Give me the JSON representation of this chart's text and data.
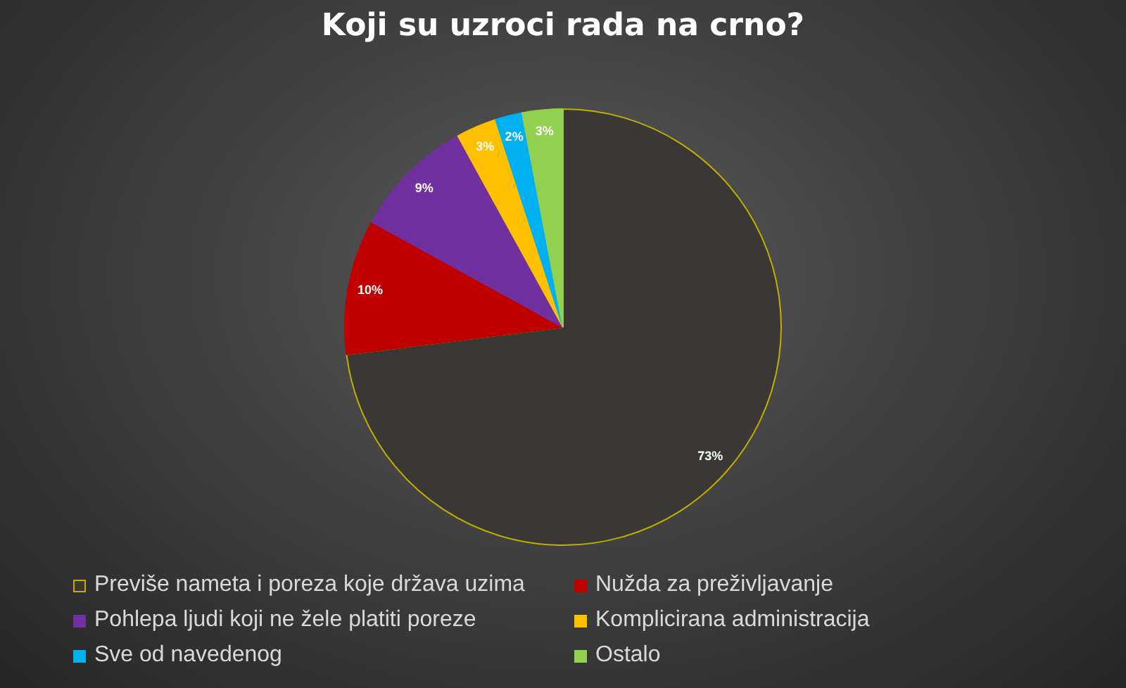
{
  "chart_data": {
    "type": "pie",
    "title": "Koji su uzroci rada na crno?",
    "categories": [
      "Previše nameta i poreza koje država uzima",
      "Nužda za preživljavanje",
      "Pohlepa ljudi koji ne žele platiti poreze",
      "Komplicirana administracija",
      "Sve od navedenog",
      "Ostalo"
    ],
    "values": [
      73,
      10,
      9,
      3,
      2,
      3
    ],
    "colors": [
      "#3a3835",
      "#c00000",
      "#7030a0",
      "#ffc000",
      "#00b0f0",
      "#92d050"
    ],
    "value_labels": [
      "73%",
      "10%",
      "9%",
      "3%",
      "2%",
      "3%"
    ],
    "legend": "bottom"
  }
}
